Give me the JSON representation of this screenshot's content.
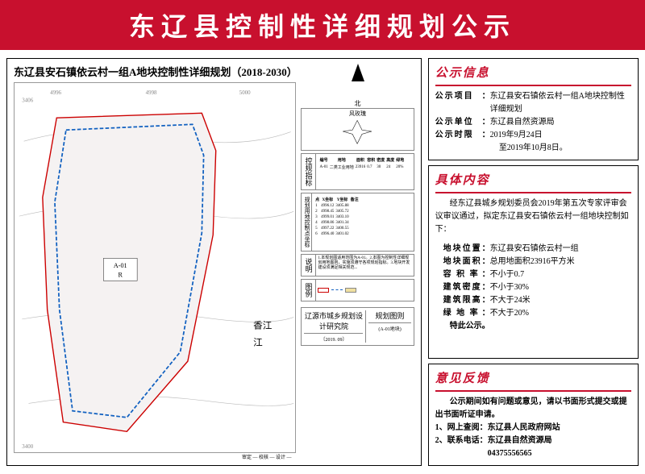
{
  "banner": {
    "title": "东辽县控制性详细规划公示"
  },
  "map": {
    "title": "东辽县安石镇依云村一组A地块控制性详细规划（2018-2030）",
    "compass_label": "北",
    "windrose_label": "风玫瑰",
    "ctrl_indicator_label": "控规指标",
    "coords_label": "规划用地控制点坐标",
    "legend_label": "图例",
    "river_label": "香江",
    "grid_v": [
      "3406",
      "3400"
    ],
    "grid_h": [
      "4996",
      "4998",
      "5000"
    ],
    "block_code": "A-01",
    "block_use": "R",
    "notes_label": "说明",
    "notes_text": "1.本规划图适用范围为A-01。2.本图为控制性详细规划用地图则，实施须遵守各项规划指标。3.地块开发建设须满足相关规范...",
    "institute": "辽源市城乡规划设计研究院",
    "institute_sub": "〔2019. 09〕",
    "sheet_label": "规划图则",
    "sheet_sub": "(A-01地块)",
    "sig": "审定 — 校核 — 设计 —"
  },
  "info": {
    "title": "公示信息",
    "project_k": "公示项目",
    "project_v": "东辽县安石镇依云村一组A地块控制性详细规划",
    "org_k": "公示单位",
    "org_v": "东辽县自然资源局",
    "time_k": "公示时限",
    "time_v1": "2019年9月24日",
    "time_v2": "至2019年10月8日。"
  },
  "content": {
    "title": "具体内容",
    "intro": "经东辽县城乡规划委员会2019年第五次专家评审会议审议通过，拟定东辽县安石镇依云村一组地块控制如下：",
    "rows": [
      {
        "k": "地块位置",
        "v": "东辽县安石镇依云村一组"
      },
      {
        "k": "地块面积",
        "v": "总用地面积23916平方米"
      },
      {
        "k": "容 积 率",
        "v": "不小于0.7"
      },
      {
        "k": "建筑密度",
        "v": "不小于30%"
      },
      {
        "k": "建筑限高",
        "v": "不大于24米"
      },
      {
        "k": "绿 地 率",
        "v": "不大于20%"
      }
    ],
    "ending": "特此公示。"
  },
  "feedback": {
    "title": "意见反馈",
    "body": "公示期间如有问题或意见，请以书面形式提交或提出书面听证申请。",
    "l1": "1、网上查阅：东辽县人民政府网站",
    "l2": "2、联系电话：东辽县自然资源局",
    "phone": "04375556565"
  },
  "colors": {
    "brand": "#c8102e"
  }
}
